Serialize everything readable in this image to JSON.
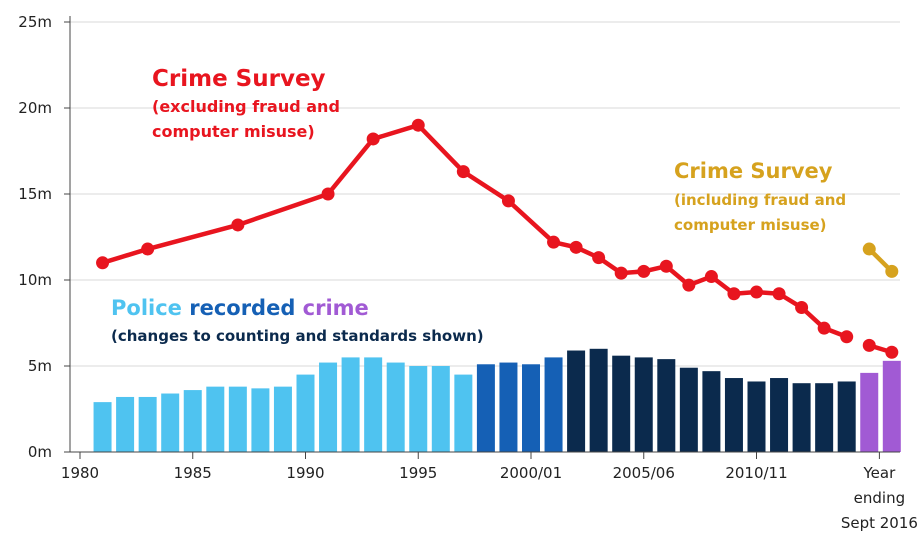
{
  "chart_data": {
    "type": "bar+line",
    "title": "",
    "xlabel": "",
    "ylabel": "",
    "ylim": [
      0,
      25
    ],
    "y_ticks": [
      "0m",
      "5m",
      "10m",
      "15m",
      "20m",
      "25m"
    ],
    "x_ticks": [
      "1980",
      "1985",
      "1990",
      "1995",
      "2000/01",
      "2005/06",
      "2010/11"
    ],
    "x_last_label": [
      "Year",
      "ending",
      "Sept 2016"
    ],
    "colors": {
      "csew_excl": "#e8151f",
      "csew_incl": "#d6a21e",
      "bar_light": "#4fc3f0",
      "bar_mid": "#1560b5",
      "bar_dark": "#0b2a4d",
      "bar_purple": "#a15ad4"
    },
    "annotations": {
      "csew_excl_title": "Crime Survey",
      "csew_excl_sub1": "(excluding fraud and",
      "csew_excl_sub2": "computer misuse)",
      "csew_incl_title": "Crime Survey",
      "csew_incl_sub1": "(including fraud and",
      "csew_incl_sub2": "computer misuse)",
      "police_word1": "Police",
      "police_word2": "recorded",
      "police_word3": "crime",
      "police_sub": "(changes to counting and standards shown)"
    },
    "police_recorded_crime": [
      {
        "x": 1981,
        "value": 2.9,
        "group": "light"
      },
      {
        "x": 1982,
        "value": 3.2,
        "group": "light"
      },
      {
        "x": 1983,
        "value": 3.2,
        "group": "light"
      },
      {
        "x": 1984,
        "value": 3.4,
        "group": "light"
      },
      {
        "x": 1985,
        "value": 3.6,
        "group": "light"
      },
      {
        "x": 1986,
        "value": 3.8,
        "group": "light"
      },
      {
        "x": 1987,
        "value": 3.8,
        "group": "light"
      },
      {
        "x": 1988,
        "value": 3.7,
        "group": "light"
      },
      {
        "x": 1989,
        "value": 3.8,
        "group": "light"
      },
      {
        "x": 1990,
        "value": 4.5,
        "group": "light"
      },
      {
        "x": 1991,
        "value": 5.2,
        "group": "light"
      },
      {
        "x": 1992,
        "value": 5.5,
        "group": "light"
      },
      {
        "x": 1993,
        "value": 5.5,
        "group": "light"
      },
      {
        "x": 1994,
        "value": 5.2,
        "group": "light"
      },
      {
        "x": 1995,
        "value": 5.0,
        "group": "light"
      },
      {
        "x": 1996,
        "value": 5.0,
        "group": "light"
      },
      {
        "x": 1997,
        "value": 4.5,
        "group": "light"
      },
      {
        "x": 1998,
        "value": 5.1,
        "group": "mid"
      },
      {
        "x": 1999,
        "value": 5.2,
        "group": "mid"
      },
      {
        "x": 2000,
        "value": 5.1,
        "group": "mid"
      },
      {
        "x": 2001,
        "value": 5.5,
        "group": "mid"
      },
      {
        "x": 2002,
        "value": 5.9,
        "group": "dark"
      },
      {
        "x": 2003,
        "value": 6.0,
        "group": "dark"
      },
      {
        "x": 2004,
        "value": 5.6,
        "group": "dark"
      },
      {
        "x": 2005,
        "value": 5.5,
        "group": "dark"
      },
      {
        "x": 2006,
        "value": 5.4,
        "group": "dark"
      },
      {
        "x": 2007,
        "value": 4.9,
        "group": "dark"
      },
      {
        "x": 2008,
        "value": 4.7,
        "group": "dark"
      },
      {
        "x": 2009,
        "value": 4.3,
        "group": "dark"
      },
      {
        "x": 2010,
        "value": 4.1,
        "group": "dark"
      },
      {
        "x": 2011,
        "value": 4.3,
        "group": "dark"
      },
      {
        "x": 2012,
        "value": 4.0,
        "group": "dark"
      },
      {
        "x": 2013,
        "value": 4.0,
        "group": "dark"
      },
      {
        "x": 2014,
        "value": 4.1,
        "group": "dark"
      },
      {
        "x": 2015,
        "value": 4.6,
        "group": "purple"
      },
      {
        "x": 2016,
        "value": 5.3,
        "group": "purple"
      }
    ],
    "series": [
      {
        "name": "Crime Survey (excluding fraud and computer misuse)",
        "color_key": "csew_excl",
        "segments": [
          [
            [
              1981,
              11.0
            ],
            [
              1983,
              11.8
            ],
            [
              1987,
              13.2
            ],
            [
              1991,
              15.0
            ],
            [
              1993,
              18.2
            ],
            [
              1995,
              19.0
            ],
            [
              1997,
              16.3
            ],
            [
              1999,
              14.6
            ],
            [
              2001,
              12.2
            ],
            [
              2002,
              11.9
            ],
            [
              2003,
              11.3
            ],
            [
              2004,
              10.4
            ],
            [
              2005,
              10.5
            ],
            [
              2006,
              10.8
            ],
            [
              2007,
              9.7
            ],
            [
              2008,
              10.2
            ],
            [
              2009,
              9.2
            ],
            [
              2010,
              9.3
            ],
            [
              2011,
              9.2
            ],
            [
              2012,
              8.4
            ],
            [
              2013,
              7.2
            ],
            [
              2014,
              6.7
            ]
          ],
          [
            [
              2015,
              6.2
            ],
            [
              2016,
              5.8
            ]
          ]
        ]
      },
      {
        "name": "Crime Survey (including fraud and computer misuse)",
        "color_key": "csew_incl",
        "segments": [
          [
            [
              2015,
              11.8
            ],
            [
              2016,
              10.5
            ]
          ]
        ]
      }
    ]
  }
}
